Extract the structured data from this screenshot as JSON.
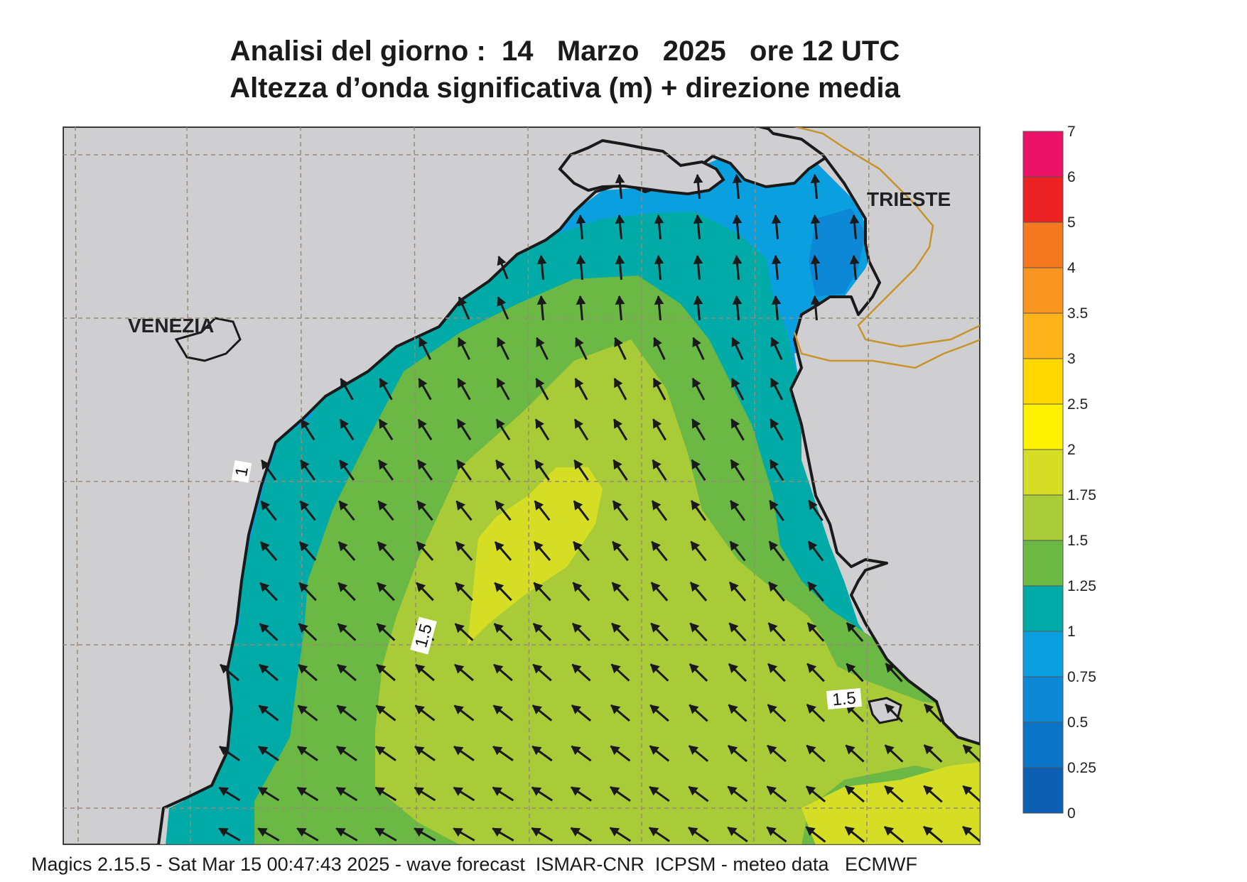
{
  "title": {
    "line1": "Analisi del giorno :  14   Marzo   2025   ore 12 UTC",
    "line2": "Altezza d’onda significativa (m) + direzione media"
  },
  "map": {
    "places": [
      {
        "name": "VENEZIA"
      },
      {
        "name": "TRIESTE"
      }
    ],
    "contour_labels": [
      "1",
      "1.5",
      "1.5"
    ],
    "mean_direction": "north-west (arrows pointing NNW)",
    "land_color": "#cfcfd1",
    "grid": true
  },
  "legend": {
    "ticks": [
      "0",
      "0.25",
      "0.5",
      "0.75",
      "1",
      "1.25",
      "1.5",
      "1.75",
      "2",
      "2.5",
      "3",
      "3.5",
      "4",
      "5",
      "6",
      "7"
    ],
    "colors": [
      "#0c5fb3",
      "#0a74c7",
      "#0c88d6",
      "#0aa0e0",
      "#00aaa6",
      "#6cb844",
      "#a9cb37",
      "#d5de25",
      "#fff200",
      "#ffd800",
      "#ffb31a",
      "#f99420",
      "#f47820",
      "#ec2124",
      "#ec1267"
    ]
  },
  "footer": {
    "text": "Magics 2.15.5 - Sat Mar 15 00:47:43 2025 - wave forecast  ISMAR-CNR  ICPSM - meteo data   ECMWF"
  }
}
